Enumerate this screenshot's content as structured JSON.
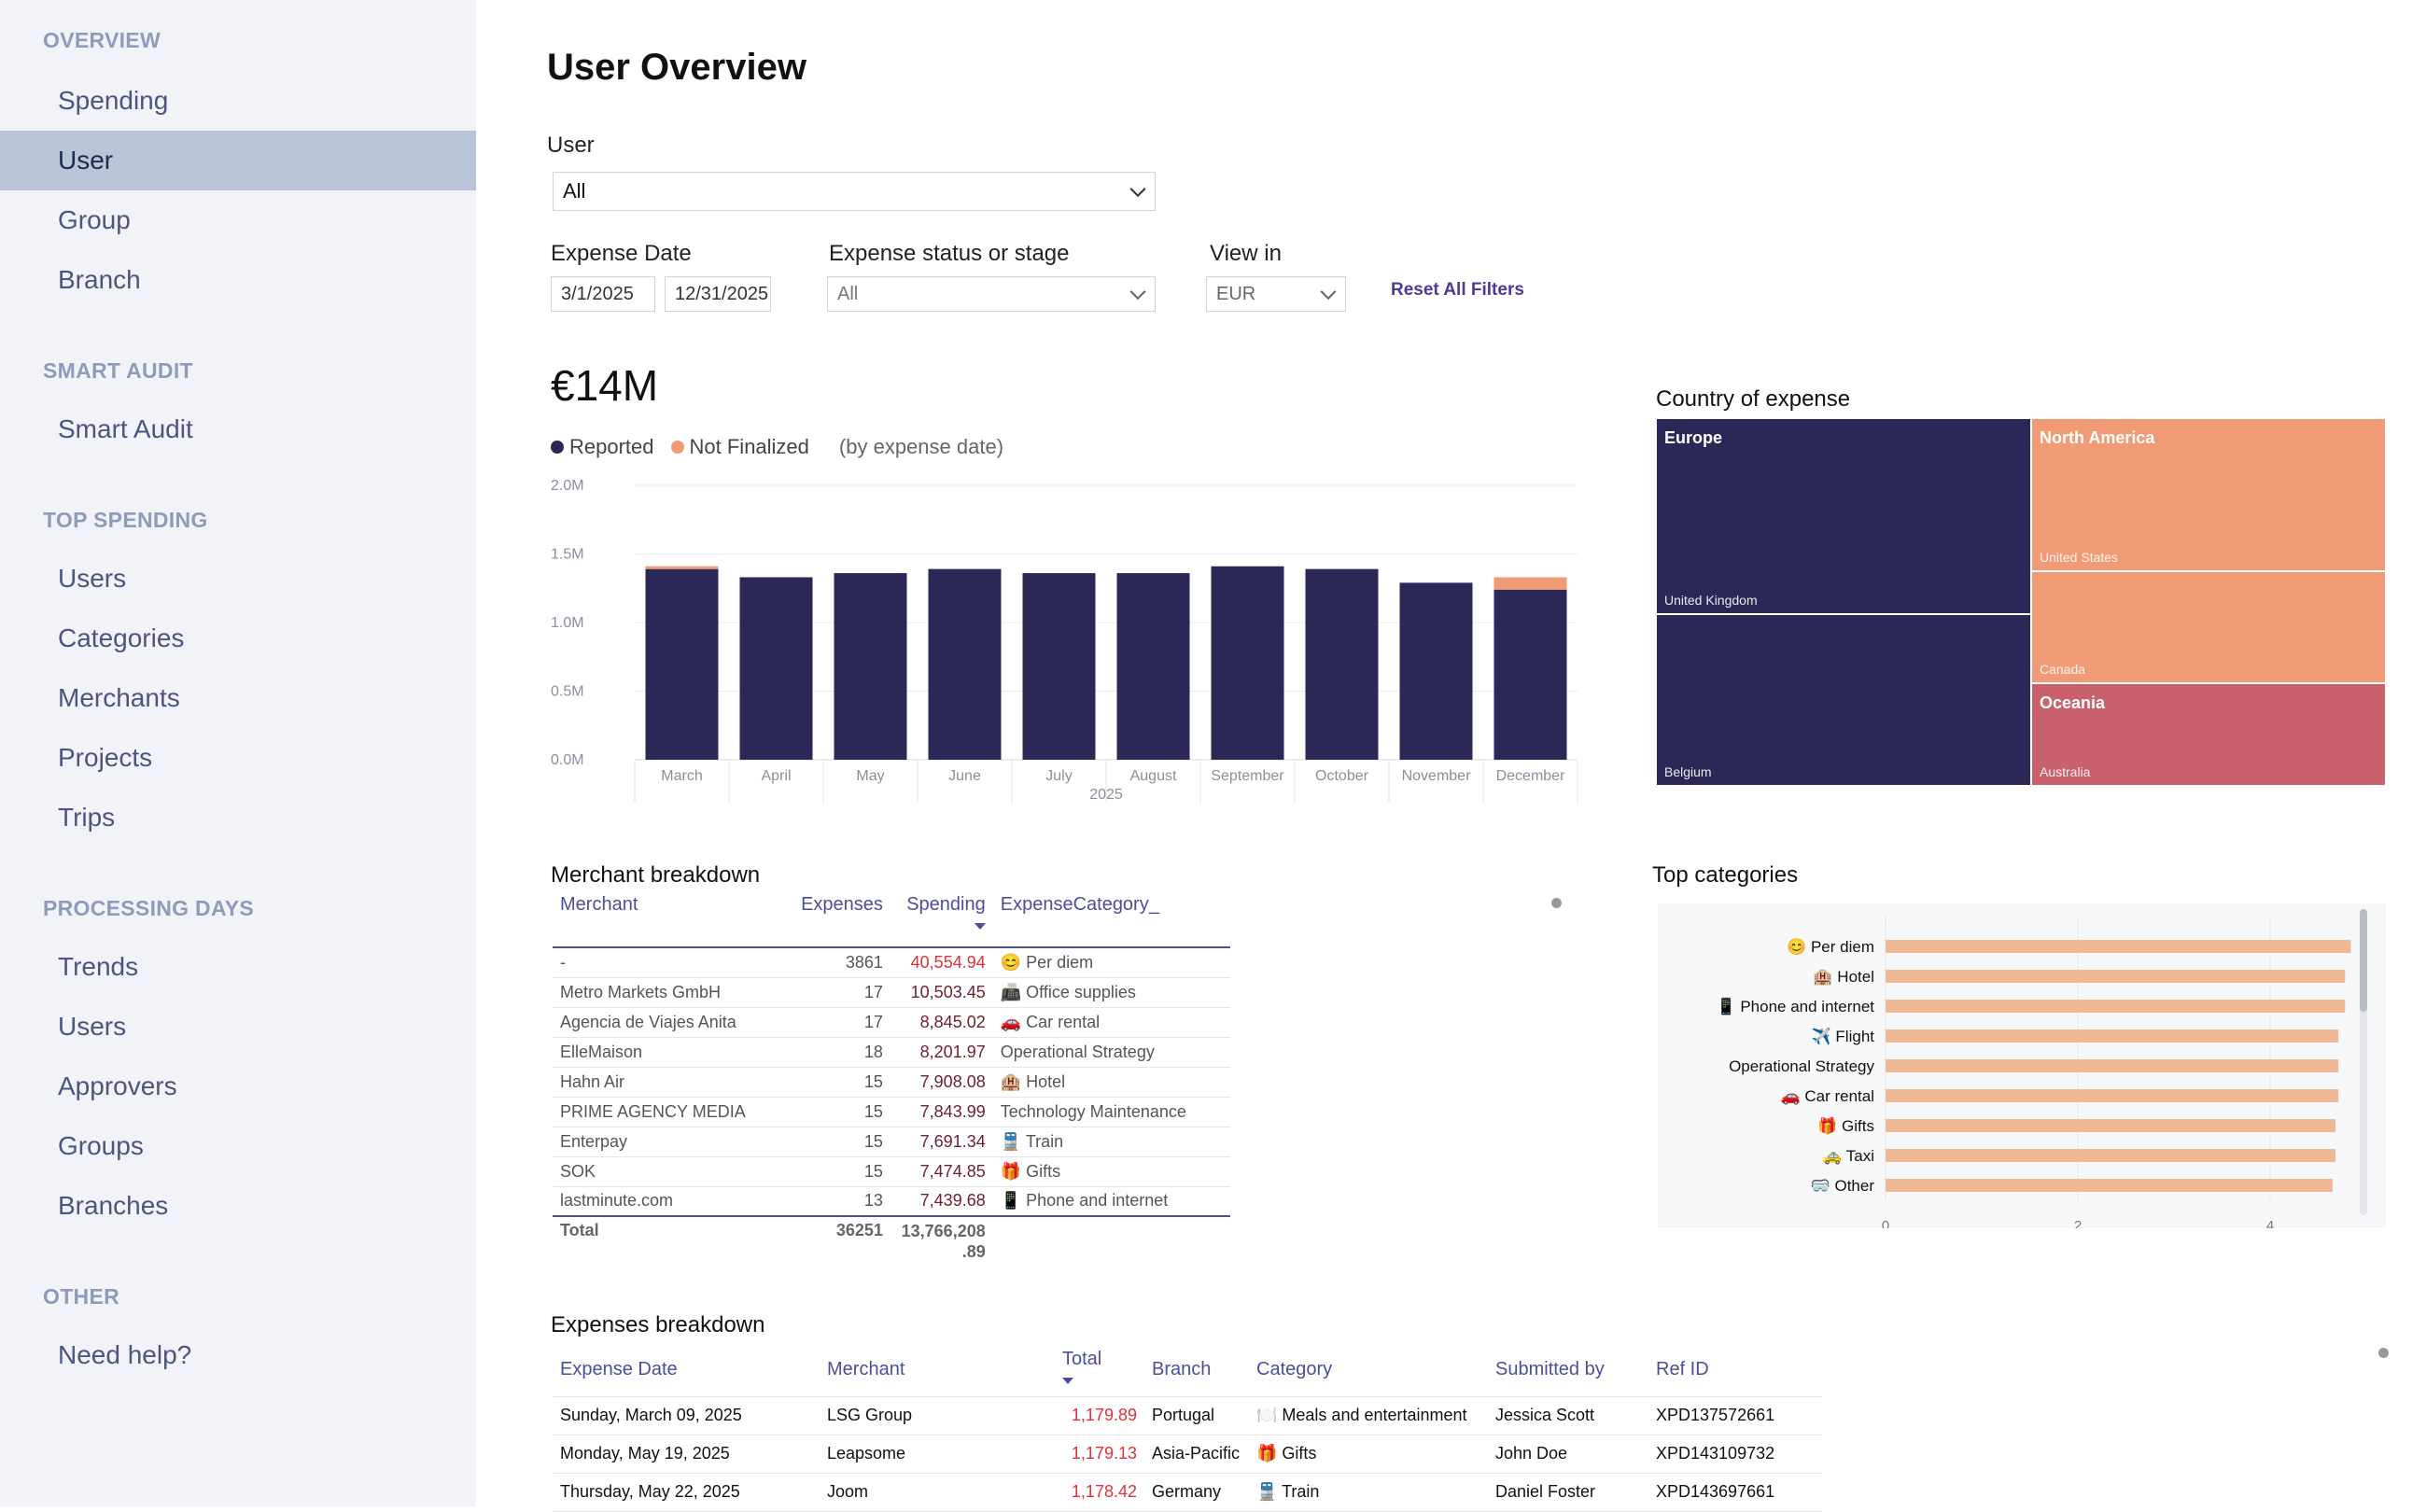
{
  "sidebar": {
    "sections": [
      {
        "title": "OVERVIEW",
        "items": [
          "Spending",
          "User",
          "Group",
          "Branch"
        ]
      },
      {
        "title": "SMART AUDIT",
        "items": [
          "Smart Audit"
        ]
      },
      {
        "title": "TOP SPENDING",
        "items": [
          "Users",
          "Categories",
          "Merchants",
          "Projects",
          "Trips"
        ]
      },
      {
        "title": "PROCESSING DAYS",
        "items": [
          "Trends",
          "Users",
          "Approvers",
          "Groups",
          "Branches"
        ]
      },
      {
        "title": "OTHER",
        "items": [
          "Need help?"
        ]
      }
    ],
    "active": "User"
  },
  "page": {
    "title": "User Overview"
  },
  "filters": {
    "user_label": "User",
    "user_value": "All",
    "date_label": "Expense Date",
    "date_from": "3/1/2025",
    "date_to": "12/31/2025",
    "status_label": "Expense status or stage",
    "status_value": "All",
    "view_label": "View in",
    "view_value": "EUR",
    "reset_label": "Reset All Filters"
  },
  "kpi": {
    "value": "€14M",
    "legend_reported": "Reported",
    "legend_not_finalized": "Not Finalized",
    "legend_note": "(by expense date)"
  },
  "colors": {
    "reported": "#2b2757",
    "not_finalized": "#f19b76",
    "oceania": "#c9616c",
    "category_bar": "#f0b996",
    "accent": "#4b3a9c",
    "highlight_red": "#e0303a"
  },
  "chart_data": [
    {
      "type": "bar",
      "stacked": true,
      "categories": [
        "March",
        "April",
        "May",
        "June",
        "July",
        "August",
        "September",
        "October",
        "November",
        "December"
      ],
      "series": [
        {
          "name": "Reported",
          "values": [
            1.39,
            1.33,
            1.36,
            1.39,
            1.36,
            1.36,
            1.41,
            1.39,
            1.29,
            1.24
          ]
        },
        {
          "name": "Not Finalized",
          "values": [
            0.02,
            0.0,
            0.0,
            0.0,
            0.0,
            0.0,
            0.0,
            0.0,
            0.0,
            0.09
          ]
        }
      ],
      "y_ticks": [
        "0.0M",
        "0.5M",
        "1.0M",
        "1.5M",
        "2.0M"
      ],
      "ylim": [
        0,
        2.0
      ],
      "xlabel": "2025",
      "grid": true
    },
    {
      "type": "bar",
      "orientation": "horizontal",
      "title": "Top categories",
      "categories": [
        "😊 Per diem",
        "🏨 Hotel",
        "📱 Phone and internet",
        "✈️ Flight",
        "Operational Strategy",
        "🚗 Car rental",
        "🎁 Gifts",
        "🚕 Taxi",
        "🥽 Other"
      ],
      "values": [
        4.84,
        4.78,
        4.78,
        4.71,
        4.71,
        4.71,
        4.68,
        4.68,
        4.65
      ],
      "x_ticks": [
        "0",
        "2",
        "4"
      ],
      "xlim": [
        0,
        5.0
      ]
    }
  ],
  "treemap": {
    "title": "Country of expense",
    "regions": [
      {
        "name": "Europe",
        "countries": [
          "United Kingdom",
          "Belgium"
        ]
      },
      {
        "name": "North America",
        "countries": [
          "United States",
          "Canada"
        ]
      },
      {
        "name": "Oceania",
        "countries": [
          "Australia"
        ]
      }
    ]
  },
  "merchant_breakdown": {
    "title": "Merchant breakdown",
    "columns": [
      "Merchant",
      "Expenses",
      "Spending",
      "ExpenseCategory_"
    ],
    "rows": [
      {
        "merchant": "-",
        "expenses": "3861",
        "spending": "40,554.94",
        "category": "😊 Per diem"
      },
      {
        "merchant": "Metro Markets GmbH",
        "expenses": "17",
        "spending": "10,503.45",
        "category": "📠 Office supplies"
      },
      {
        "merchant": "Agencia de Viajes Anita",
        "expenses": "17",
        "spending": "8,845.02",
        "category": "🚗 Car rental"
      },
      {
        "merchant": "ElleMaison",
        "expenses": "18",
        "spending": "8,201.97",
        "category": "Operational Strategy"
      },
      {
        "merchant": "Hahn Air",
        "expenses": "15",
        "spending": "7,908.08",
        "category": "🏨 Hotel"
      },
      {
        "merchant": "PRIME AGENCY MEDIA",
        "expenses": "15",
        "spending": "7,843.99",
        "category": "Technology Maintenance"
      },
      {
        "merchant": "Enterpay",
        "expenses": "15",
        "spending": "7,691.34",
        "category": "🚆 Train"
      },
      {
        "merchant": "SOK",
        "expenses": "15",
        "spending": "7,474.85",
        "category": "🎁 Gifts"
      },
      {
        "merchant": "lastminute.com",
        "expenses": "13",
        "spending": "7,439.68",
        "category": "📱 Phone and internet"
      }
    ],
    "total": {
      "label": "Total",
      "expenses": "36251",
      "spending_line1": "13,766,208",
      "spending_line2": ".89"
    }
  },
  "expenses_breakdown": {
    "title": "Expenses breakdown",
    "columns": [
      "Expense Date",
      "Merchant",
      "Total",
      "Branch",
      "Category",
      "Submitted by",
      "Ref ID"
    ],
    "rows": [
      {
        "date": "Sunday, March 09, 2025",
        "merchant": "LSG Group",
        "total": "1,179.89",
        "branch": "Portugal",
        "category": "🍽️ Meals and entertainment",
        "submitted_by": "Jessica Scott",
        "ref": "XPD137572661"
      },
      {
        "date": "Monday, May 19, 2025",
        "merchant": "Leapsome",
        "total": "1,179.13",
        "branch": "Asia-Pacific",
        "category": "🎁 Gifts",
        "submitted_by": "John Doe",
        "ref": "XPD143109732"
      },
      {
        "date": "Thursday, May 22, 2025",
        "merchant": "Joom",
        "total": "1,178.42",
        "branch": "Germany",
        "category": "🚆 Train",
        "submitted_by": "Daniel Foster",
        "ref": "XPD143697661"
      }
    ]
  }
}
